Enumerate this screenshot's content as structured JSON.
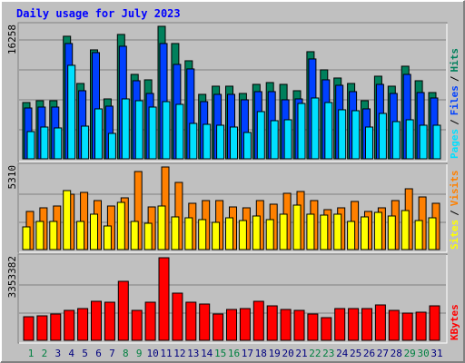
{
  "chart_data": {
    "type": "bar",
    "title": "Daily usage for July 2023",
    "categories": [
      "1",
      "2",
      "3",
      "4",
      "5",
      "6",
      "7",
      "8",
      "9",
      "10",
      "11",
      "12",
      "13",
      "14",
      "15",
      "16",
      "17",
      "18",
      "19",
      "20",
      "21",
      "22",
      "23",
      "24",
      "25",
      "26",
      "27",
      "28",
      "29",
      "30",
      "31"
    ],
    "category_colors": [
      "#008040",
      "#008040",
      "#00007f",
      "#00007f",
      "#00007f",
      "#00007f",
      "#00007f",
      "#008040",
      "#008040",
      "#00007f",
      "#00007f",
      "#00007f",
      "#00007f",
      "#00007f",
      "#008040",
      "#008040",
      "#00007f",
      "#00007f",
      "#00007f",
      "#00007f",
      "#00007f",
      "#008040",
      "#008040",
      "#00007f",
      "#00007f",
      "#00007f",
      "#00007f",
      "#00007f",
      "#008040",
      "#008040",
      "#00007f"
    ],
    "legend_separator": "/",
    "panels": [
      {
        "ylim": [
          0,
          16258
        ],
        "yticks": [
          16258
        ],
        "series": [
          {
            "name": "Hits",
            "color": "#00805c",
            "values": [
              6907,
              7130,
              7130,
              15039,
              9246,
              13368,
              7352,
              15262,
              10360,
              9692,
              16258,
              14148,
              12031,
              7909,
              8912,
              8912,
              8021,
              9135,
              9358,
              9135,
              8355,
              13145,
              10917,
              9915,
              9246,
              7130,
              10137,
              8912,
              11363,
              9580,
              8132
            ]
          },
          {
            "name": "Files",
            "color": "#0040ff",
            "values": [
              6238,
              6350,
              6350,
              14148,
              8355,
              13034,
              6461,
              13814,
              9580,
              8021,
              14148,
              11586,
              11029,
              7018,
              7909,
              7909,
              7241,
              8244,
              8244,
              7241,
              7352,
              12254,
              9692,
              9023,
              8244,
              6127,
              9135,
              8021,
              10360,
              8132,
              7464
            ]
          },
          {
            "name": "Pages",
            "color": "#00e0ff",
            "values": [
              3342,
              3899,
              3788,
              11474,
              4010,
              6127,
              3119,
              7352,
              7130,
              6350,
              7018,
              6684,
              4345,
              4233,
              4122,
              3899,
              3231,
              5793,
              4679,
              4790,
              6795,
              7464,
              6907,
              6016,
              5904,
              3899,
              5570,
              4567,
              4790,
              4122,
              4122
            ]
          }
        ]
      },
      {
        "ylim": [
          0,
          5310
        ],
        "yticks": [
          5310
        ],
        "series": [
          {
            "name": "Visits",
            "color": "#ff8000",
            "values": [
              2451,
              2684,
              2801,
              3559,
              3676,
              3151,
              2801,
              3326,
              5018,
              2742,
              5310,
              4318,
              2976,
              3151,
              3151,
              2742,
              2684,
              3151,
              2918,
              3618,
              3734,
              3151,
              2567,
              2684,
              3093,
              2451,
              2684,
              3151,
              3909,
              3384,
              2976
            ]
          },
          {
            "name": "Sites",
            "color": "#ffff00",
            "values": [
              1459,
              1809,
              1809,
              3793,
              1809,
              2276,
              1517,
              3034,
              1809,
              1692,
              2801,
              2101,
              2042,
              1926,
              1751,
              2042,
              1867,
              2159,
              1926,
              2276,
              2859,
              2276,
              2217,
              2276,
              1809,
              2101,
              2392,
              2159,
              2509,
              1867,
              2042
            ]
          }
        ]
      },
      {
        "ylim": [
          0,
          3353382
        ],
        "yticks": [
          3353382
        ],
        "series": [
          {
            "name": "KBytes",
            "color": "#ff0000",
            "values": [
              958100,
              994950,
              1068650,
              1216050,
              1289750,
              1584550,
              1547700,
              2395250,
              1216050,
              1547700,
              3353382,
              1916200,
              1547700,
              1474000,
              1068650,
              1252900,
              1289750,
              1584550,
              1400300,
              1252900,
              1216050,
              1068650,
              921250,
              1289750,
              1289750,
              1289750,
              1437150,
              1216050,
              1105500,
              1142350,
              1400300
            ]
          }
        ]
      }
    ]
  }
}
